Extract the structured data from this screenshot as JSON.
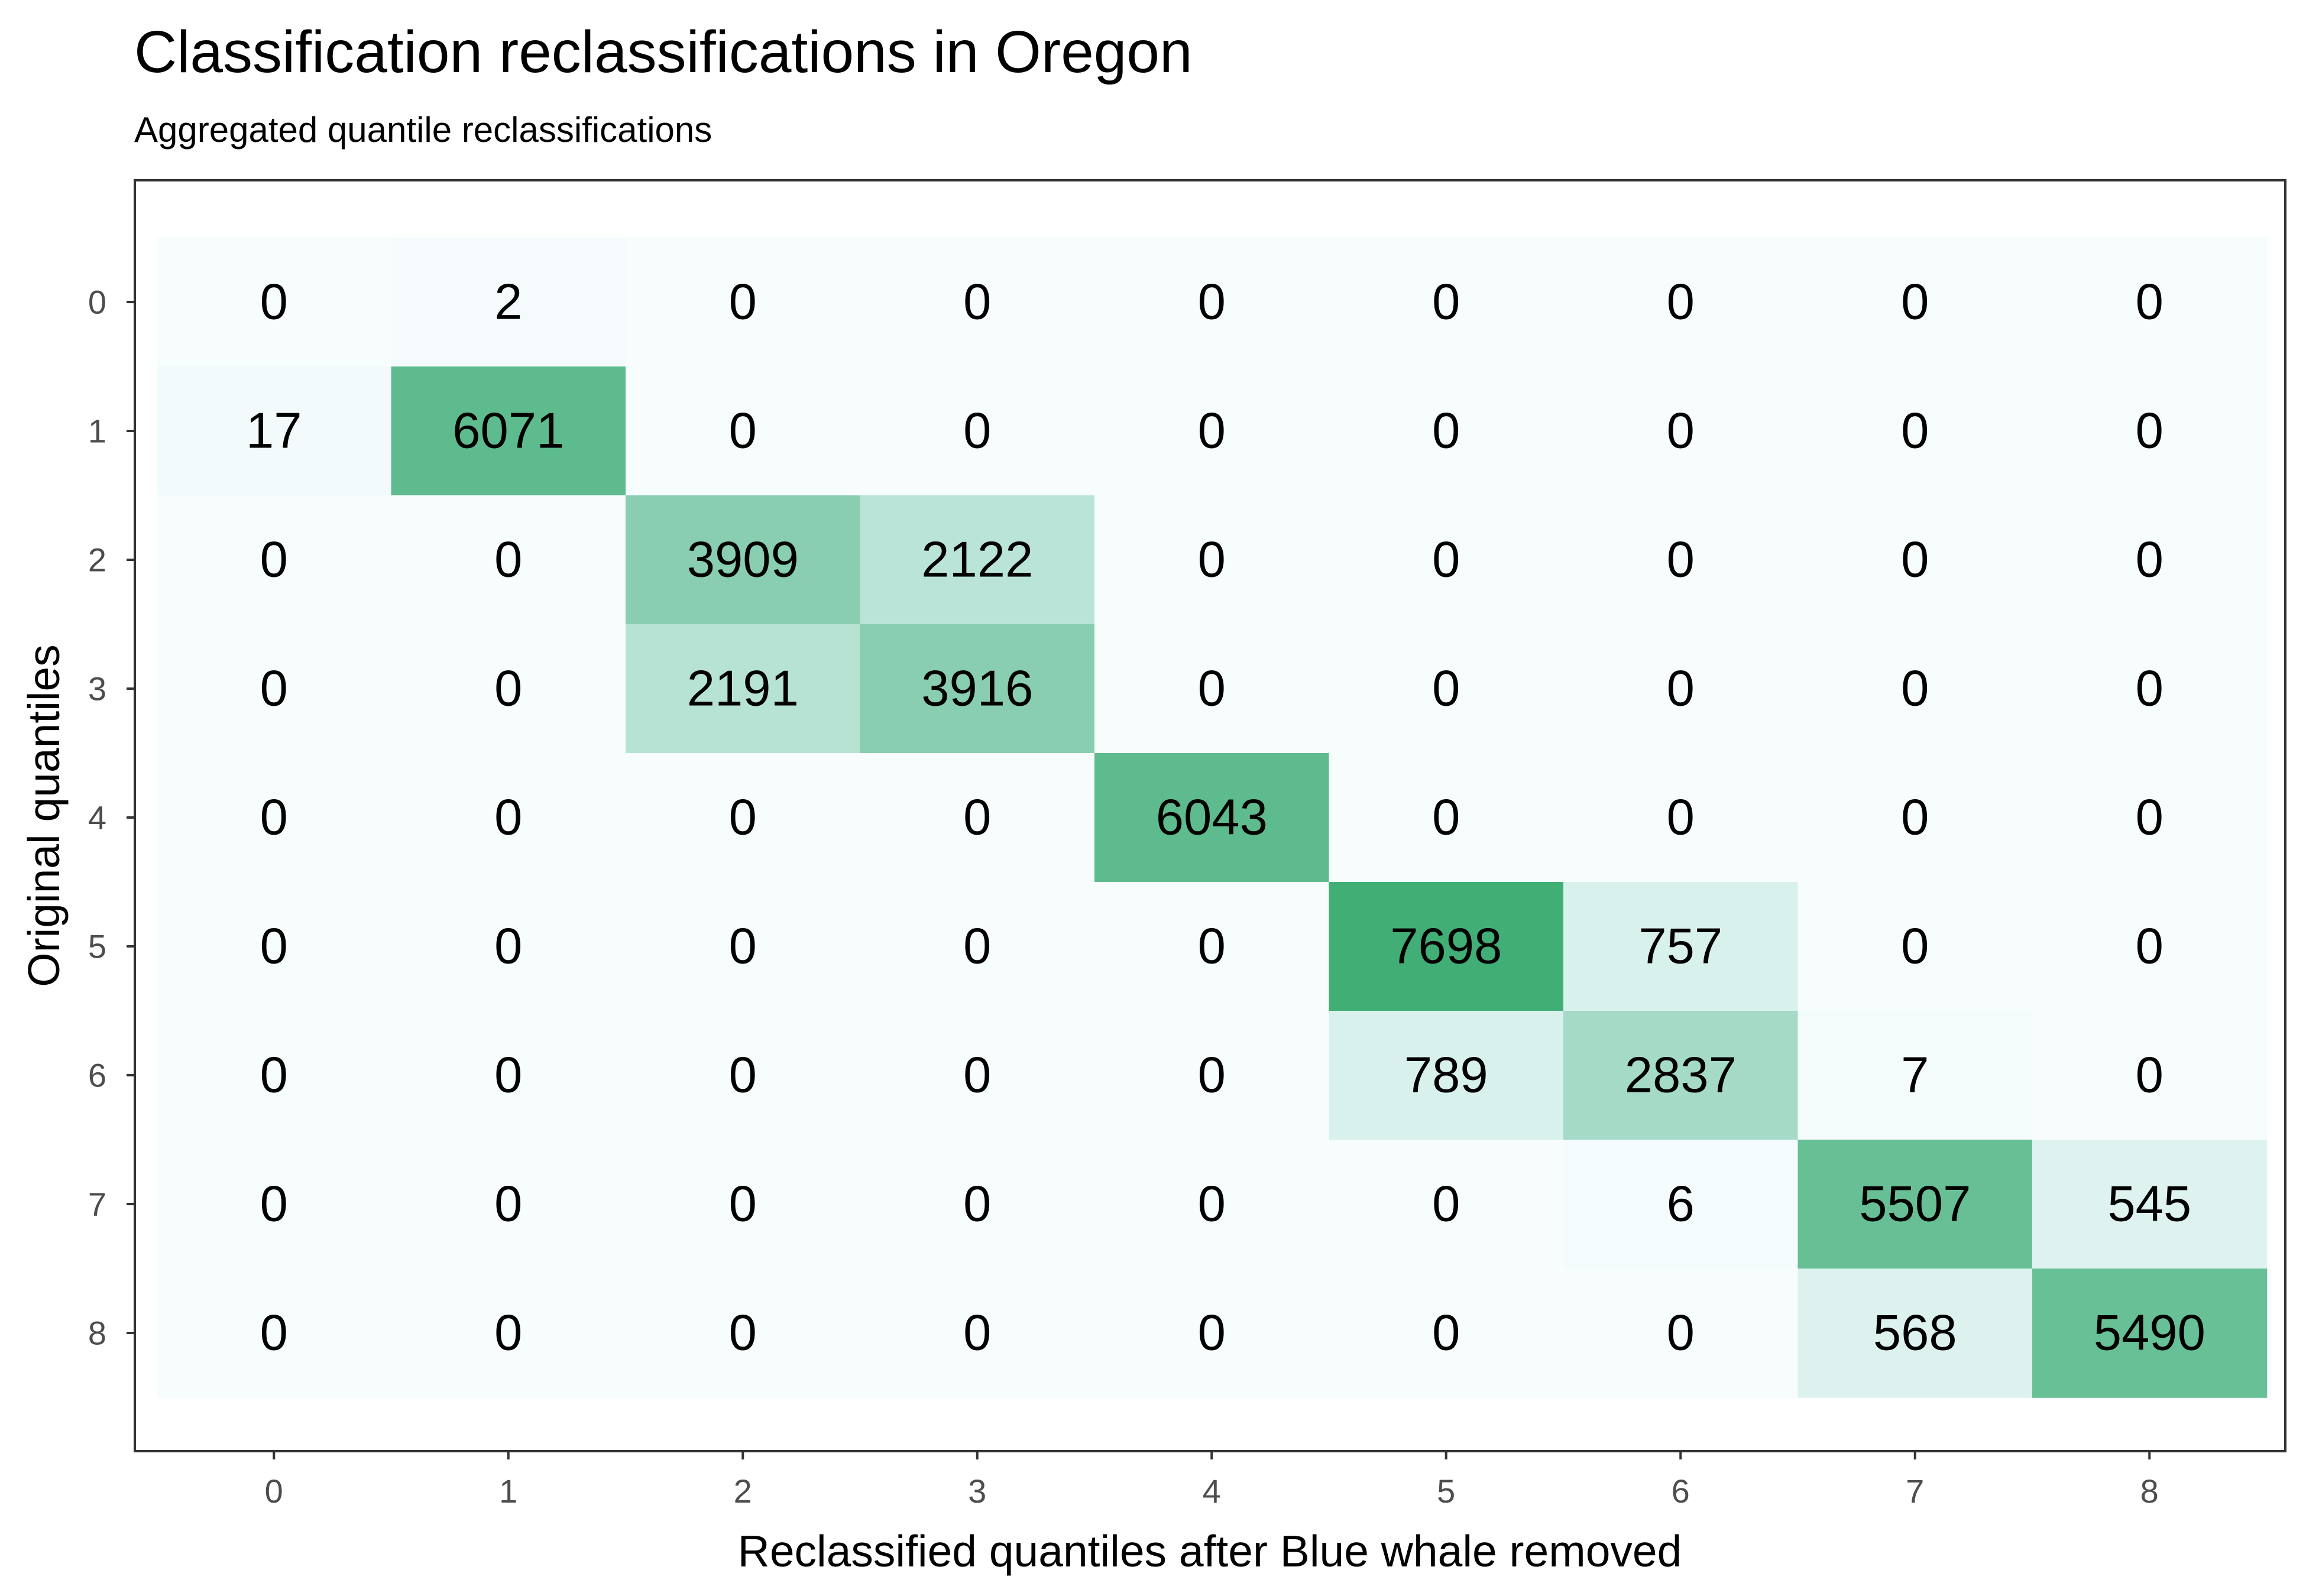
{
  "chart_data": {
    "type": "heatmap",
    "title": "Classification reclassifications in Oregon",
    "subtitle": "Aggregated quantile reclassifications",
    "xlabel": "Reclassified quantiles after Blue whale removed",
    "ylabel": "Original quantiles",
    "x_categories": [
      "0",
      "1",
      "2",
      "3",
      "4",
      "5",
      "6",
      "7",
      "8"
    ],
    "y_categories": [
      "0",
      "1",
      "2",
      "3",
      "4",
      "5",
      "6",
      "7",
      "8"
    ],
    "values": [
      [
        0,
        2,
        0,
        0,
        0,
        0,
        0,
        0,
        0
      ],
      [
        17,
        6071,
        0,
        0,
        0,
        0,
        0,
        0,
        0
      ],
      [
        0,
        0,
        3909,
        2122,
        0,
        0,
        0,
        0,
        0
      ],
      [
        0,
        0,
        2191,
        3916,
        0,
        0,
        0,
        0,
        0
      ],
      [
        0,
        0,
        0,
        0,
        6043,
        0,
        0,
        0,
        0
      ],
      [
        0,
        0,
        0,
        0,
        0,
        7698,
        757,
        0,
        0
      ],
      [
        0,
        0,
        0,
        0,
        0,
        789,
        2837,
        7,
        0
      ],
      [
        0,
        0,
        0,
        0,
        0,
        0,
        6,
        5507,
        545
      ],
      [
        0,
        0,
        0,
        0,
        0,
        0,
        0,
        568,
        5490
      ]
    ],
    "color_scale": {
      "low": "#f7fcfd",
      "mid": "#ccece6",
      "high": "#41ae76"
    },
    "grid": false,
    "legend": "none"
  }
}
